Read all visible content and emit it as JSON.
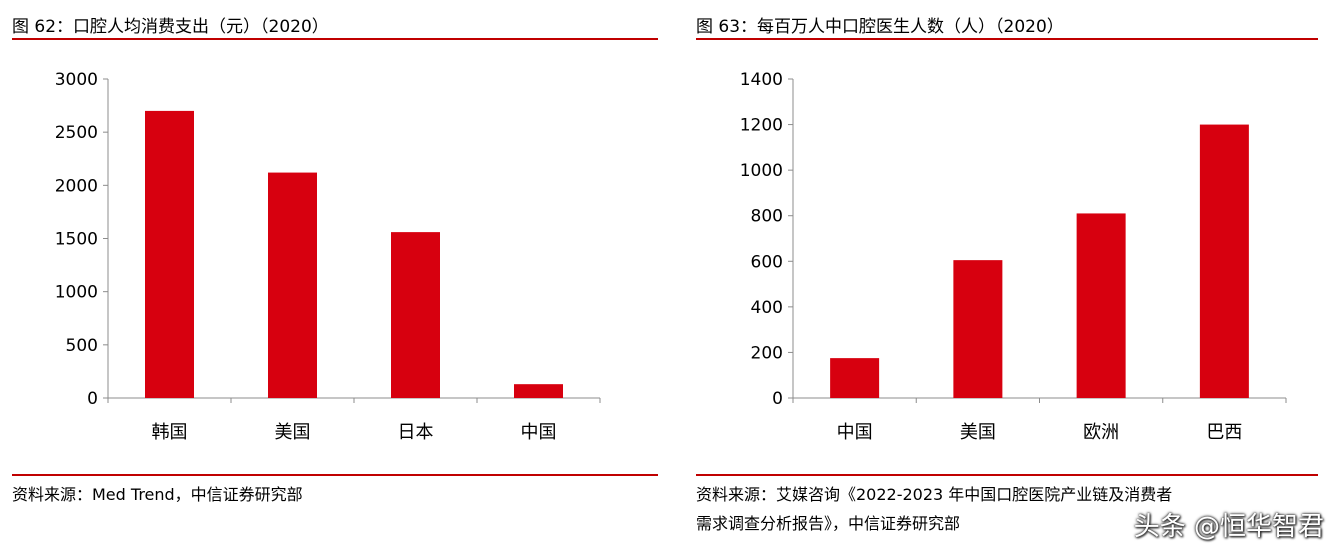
{
  "chart_data": [
    {
      "type": "bar",
      "title": "图 62：口腔人均消费支出（元）（2020）",
      "categories": [
        "韩国",
        "美国",
        "日本",
        "中国"
      ],
      "values": [
        2700,
        2120,
        1560,
        130
      ],
      "ylim": [
        0,
        3000
      ],
      "yticks": [
        0,
        500,
        1000,
        1500,
        2000,
        2500,
        3000
      ],
      "bar_color": "#d7000f",
      "source": "资料来源：Med Trend，中信证券研究部"
    },
    {
      "type": "bar",
      "title": "图 63：每百万人中口腔医生人数（人）（2020）",
      "categories": [
        "中国",
        "美国",
        "欧洲",
        "巴西"
      ],
      "values": [
        175,
        605,
        810,
        1200
      ],
      "ylim": [
        0,
        1400
      ],
      "yticks": [
        0,
        200,
        400,
        600,
        800,
        1000,
        1200,
        1400
      ],
      "bar_color": "#d7000f",
      "source_line1": "资料来源：艾媒咨询《2022-2023 年中国口腔医院产业链及消费者",
      "source_line2": "需求调查分析报告》，中信证券研究部"
    }
  ],
  "watermark": "头条 @恒华智君",
  "accent_color": "#c00000"
}
